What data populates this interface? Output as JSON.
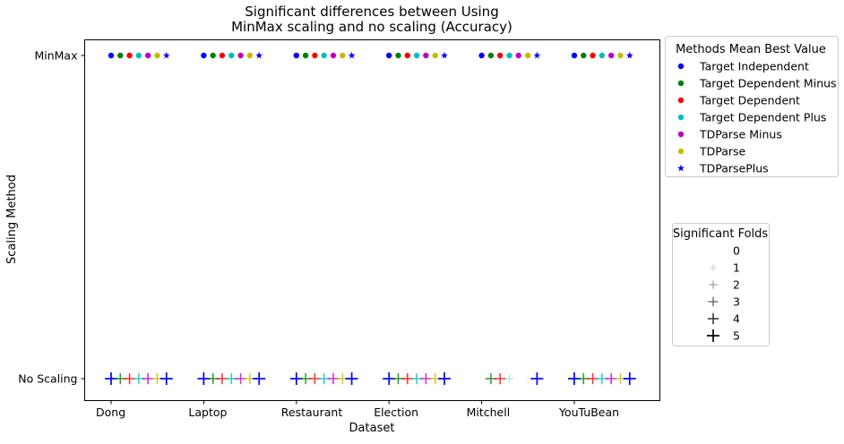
{
  "chart_data": {
    "type": "scatter",
    "title_line1": "Significant differences between Using",
    "title_line2": "MinMax scaling and no scaling (Accuracy)",
    "xlabel": "Dataset",
    "ylabel": "Scaling Method",
    "categories": [
      "Dong",
      "Laptop",
      "Restaurant",
      "Election",
      "Mitchell",
      "YouTuBean"
    ],
    "y_categories": [
      "MinMax",
      "No Scaling"
    ],
    "methods": [
      {
        "name": "Target Independent",
        "color": "#0000ff",
        "marker": "circle"
      },
      {
        "name": "Target Dependent Minus",
        "color": "#008000",
        "marker": "circle"
      },
      {
        "name": "Target Dependent",
        "color": "#ff0000",
        "marker": "circle"
      },
      {
        "name": "Target Dependent Plus",
        "color": "#00bfbf",
        "marker": "circle"
      },
      {
        "name": "TDParse Minus",
        "color": "#bf00bf",
        "marker": "circle"
      },
      {
        "name": "TDParse",
        "color": "#bfbf00",
        "marker": "circle"
      },
      {
        "name": "TDParsePlus",
        "color": "#0000ff",
        "marker": "star"
      }
    ],
    "significant_folds": {
      "Dong": [
        5,
        4,
        4,
        4,
        4,
        4,
        5
      ],
      "Laptop": [
        5,
        4,
        4,
        4,
        4,
        4,
        5
      ],
      "Restaurant": [
        5,
        4,
        4,
        4,
        4,
        4,
        5
      ],
      "Election": [
        5,
        4,
        4,
        4,
        4,
        4,
        5
      ],
      "Mitchell": [
        0,
        4,
        4,
        2,
        0,
        1,
        5
      ],
      "YouTuBean": [
        5,
        4,
        4,
        4,
        4,
        4,
        5
      ]
    },
    "legend_methods_title": "Methods Mean Best Value",
    "legend_folds_title": "Significant Folds",
    "fold_levels": [
      "0",
      "1",
      "2",
      "3",
      "4",
      "5"
    ],
    "legend_placement": "outside-right",
    "grid": false
  }
}
